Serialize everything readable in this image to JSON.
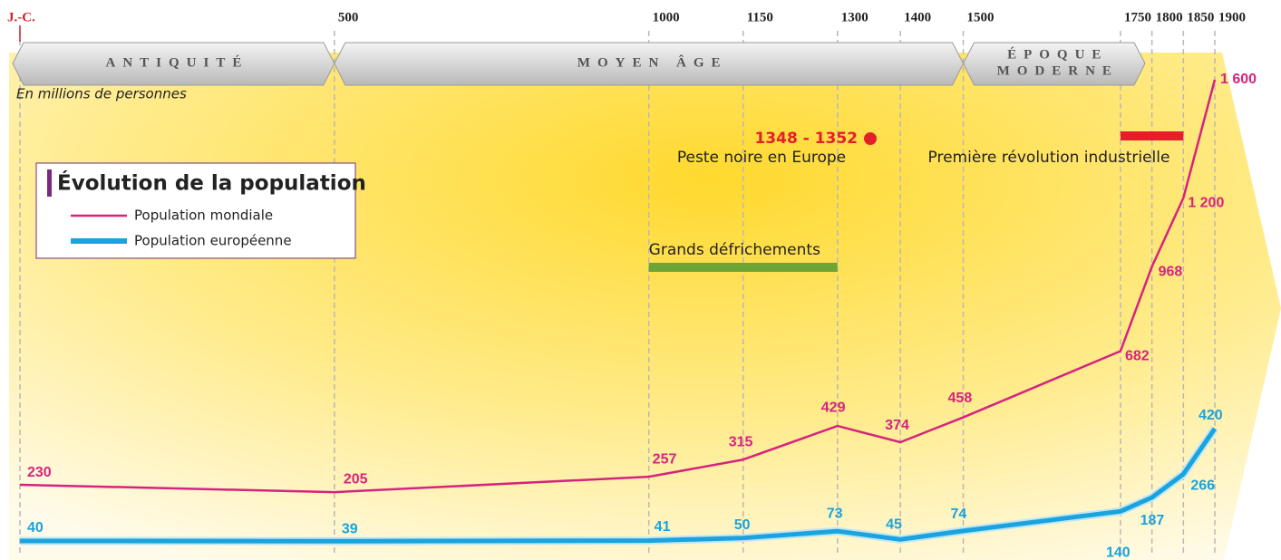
{
  "chart_data": {
    "type": "line",
    "subtitle": "En millions de personnes",
    "legend_title": "Évolution de la population",
    "x": [
      0,
      500,
      1000,
      1150,
      1300,
      1400,
      1500,
      1750,
      1800,
      1850,
      1900
    ],
    "xlim": [
      0,
      1900
    ],
    "xticks": [
      {
        "value": 0,
        "label": "J.-C."
      },
      500,
      1000,
      1150,
      1300,
      1400,
      1500,
      1750,
      1800,
      1850,
      1900
    ],
    "ylim": [
      0,
      1600
    ],
    "grid": true,
    "series": [
      {
        "name": "Population mondiale",
        "color": "#d6237f",
        "values": [
          230,
          205,
          257,
          315,
          429,
          374,
          458,
          682,
          968,
          1200,
          1600
        ],
        "value_labels": [
          "230",
          "205",
          "257",
          "315",
          "429",
          "374",
          "458",
          "682",
          "968",
          "1 200",
          "1 600"
        ]
      },
      {
        "name": "Population européenne",
        "color": "#1aa3dc",
        "values": [
          40,
          39,
          41,
          50,
          73,
          45,
          74,
          140,
          187,
          266,
          420
        ]
      }
    ],
    "periods": [
      {
        "label": [
          "ANTIQUITÉ"
        ],
        "start": 0,
        "end": 500
      },
      {
        "label": [
          "MOYEN ÂGE"
        ],
        "start": 500,
        "end": 1500
      },
      {
        "label": [
          "ÉPOQUE",
          "MODERNE"
        ],
        "start": 1500,
        "end": 1789
      }
    ],
    "events": [
      {
        "date": "1348 - 1352",
        "label": "Peste noire en Europe",
        "color": "#e3202a"
      },
      {
        "label": "Première révolution industrielle",
        "start": 1750,
        "end": 1850,
        "color": "#e3202a"
      },
      {
        "label": "Grands défrichements",
        "start": 1000,
        "end": 1300,
        "color": "#6da534"
      }
    ]
  }
}
